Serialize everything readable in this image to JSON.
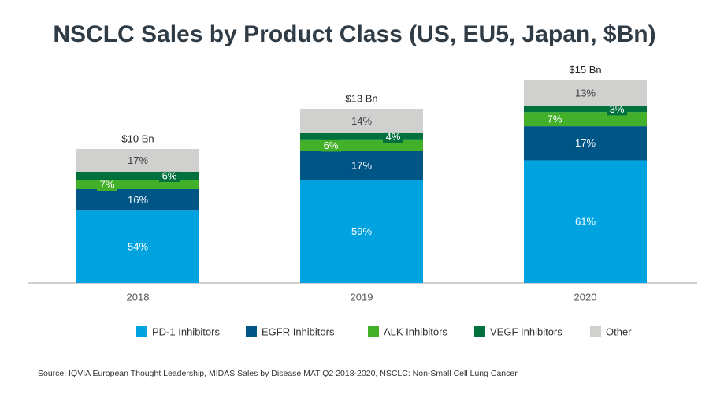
{
  "chart_data": {
    "type": "stacked_bar",
    "title": "NSCLC Sales by Product Class (US, EU5, Japan, $Bn)",
    "categories": [
      "2018",
      "2019",
      "2020"
    ],
    "series": [
      {
        "name": "PD-1 Inhibitors",
        "color": "#00a3e0",
        "values": [
          54,
          59,
          61
        ],
        "value_labels": [
          "54%",
          "59%",
          "61%"
        ]
      },
      {
        "name": "EGFR Inhibitors",
        "color": "#005587",
        "values": [
          16,
          17,
          17
        ],
        "value_labels": [
          "16%",
          "17%",
          "17%"
        ]
      },
      {
        "name": "ALK Inhibitors",
        "color": "#43b02a",
        "values": [
          7,
          6,
          7
        ],
        "value_labels": [
          "7%",
          "6%",
          "7%"
        ]
      },
      {
        "name": "VEGF Inhibitors",
        "color": "#00703c",
        "values": [
          6,
          4,
          3
        ],
        "value_labels": [
          "6%",
          "4%",
          "3%"
        ]
      },
      {
        "name": "Other",
        "color": "#d0d0ce",
        "values": [
          17,
          14,
          13
        ],
        "value_labels": [
          "17%",
          "14%",
          "13%"
        ]
      }
    ],
    "totals": {
      "values": [
        10,
        13,
        15
      ],
      "value_labels": [
        "$10 Bn",
        "$13 Bn",
        "$15 Bn"
      ]
    },
    "source": "Source: IQVIA European Thought Leadership, MIDAS Sales by Disease MAT Q2 2018-2020, NSCLC: Non-Small Cell Lung Cancer"
  }
}
